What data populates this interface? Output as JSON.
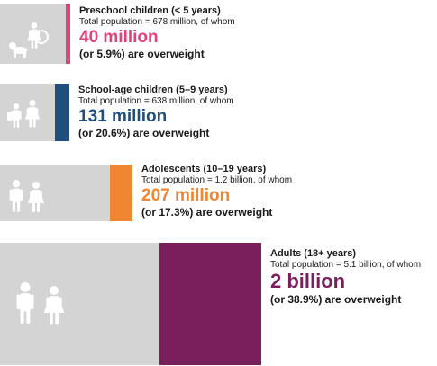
{
  "chart_data": {
    "type": "bar",
    "categories": [
      "Preschool children (< 5 years)",
      "School-age children (5–9 years)",
      "Adolescents (10–19 years)",
      "Adults (18+ years)"
    ],
    "groups": [
      {
        "title": "Preschool children (< 5 years)",
        "population_text": "Total population = 678 million, of whom",
        "overweight_text": "40 million",
        "share_text": "(or 5.9%) are overweight",
        "total_population_millions": 678,
        "overweight_millions": 40,
        "overweight_share_pct": 5.9,
        "color": "#e0427b",
        "icon": "toddler-and-child-icon"
      },
      {
        "title": "School-age children (5–9 years)",
        "population_text": "Total population = 638 million, of whom",
        "overweight_text": "131 million",
        "share_text": "(or 20.6%) are overweight",
        "total_population_millions": 638,
        "overweight_millions": 131,
        "overweight_share_pct": 20.6,
        "color": "#1f4f7c",
        "icon": "children-walking-icon"
      },
      {
        "title": "Adolescents (10–19 years)",
        "population_text": "Total population = 1.2 billion, of whom",
        "overweight_text": "207 million",
        "share_text": "(or 17.3%) are overweight",
        "total_population_millions": 1200,
        "overweight_millions": 207,
        "overweight_share_pct": 17.3,
        "color": "#f08632",
        "icon": "adolescent-pair-icon"
      },
      {
        "title": "Adults (18+ years)",
        "population_text": "Total population = 5.1 billion, of whom",
        "overweight_text": "2 billion",
        "share_text": "(or 38.9%) are overweight",
        "total_population_millions": 5100,
        "overweight_millions": 2000,
        "overweight_share_pct": 38.9,
        "color": "#7a1f5c",
        "icon": "adult-pair-icon"
      }
    ],
    "total_color": "#d4d4d4"
  }
}
